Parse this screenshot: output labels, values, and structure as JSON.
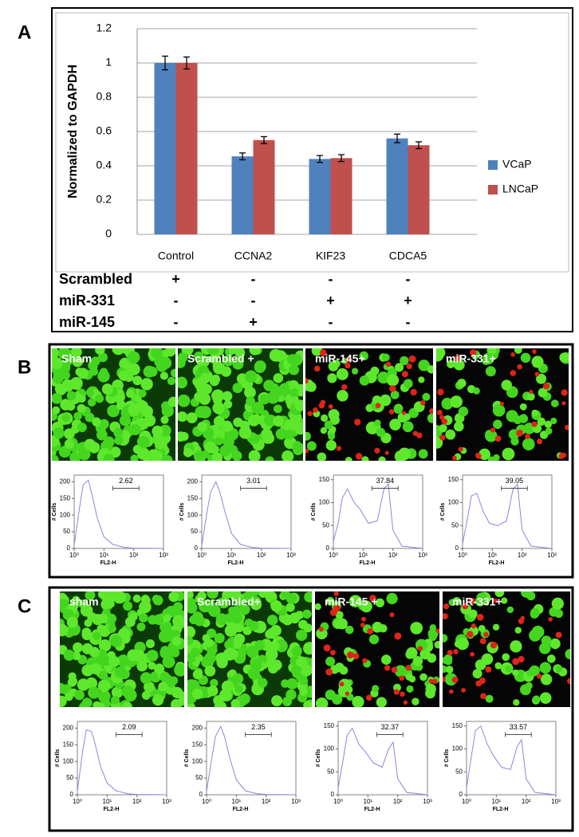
{
  "panels": [
    {
      "label": "A"
    },
    {
      "label": "B",
      "images": [
        "Sham",
        "Scrambled +",
        "miR-145+",
        "miR-331+"
      ]
    },
    {
      "label": "C",
      "images": [
        "sham",
        "Scrambled+",
        "miR-145 +",
        "miR-331+"
      ]
    }
  ],
  "treatment_table": {
    "rows": [
      {
        "label": "Scrambled",
        "cells": [
          "+",
          "-",
          "-",
          "-"
        ]
      },
      {
        "label": "miR-331",
        "cells": [
          "-",
          "-",
          "+",
          "+"
        ]
      },
      {
        "label": "miR-145",
        "cells": [
          "-",
          "+",
          "-",
          "-"
        ]
      }
    ]
  },
  "chart_data": [
    {
      "type": "bar",
      "y_label": "Normalized to GAPDH",
      "categories": [
        "Control",
        "CCNA2",
        "KIF23",
        "CDCA5"
      ],
      "series": [
        {
          "name": "VCaP",
          "color": "#4f81bd",
          "values": [
            1.0,
            0.455,
            0.44,
            0.56
          ],
          "errors": [
            0.04,
            0.02,
            0.02,
            0.025
          ]
        },
        {
          "name": "LNCaP",
          "color": "#c0504d",
          "values": [
            1.0,
            0.55,
            0.445,
            0.52
          ],
          "errors": [
            0.035,
            0.02,
            0.02,
            0.02
          ]
        }
      ],
      "ylim": [
        0,
        1.2
      ],
      "yticks": [
        0,
        0.2,
        0.4,
        0.6,
        0.8,
        1,
        1.2
      ],
      "grid": true,
      "legend": "right"
    },
    {
      "type": "histogram-line",
      "x_label": "FL2-H",
      "y_label": "# Cells",
      "color": "#8888dd",
      "xscale": "log",
      "x": [
        1,
        1.5,
        2,
        3,
        4,
        6,
        10,
        20,
        50,
        100,
        1000
      ],
      "values": [
        10,
        120,
        190,
        205,
        160,
        90,
        35,
        12,
        3,
        1,
        0
      ],
      "xlim": [
        1,
        1000
      ],
      "xticks": [
        {
          "value": 1,
          "label": "10⁰"
        },
        {
          "value": 10,
          "label": "10¹"
        },
        {
          "value": 100,
          "label": "10²"
        },
        {
          "value": 1000,
          "label": "10³"
        }
      ],
      "ylim": [
        0,
        220
      ],
      "yticks": [
        0,
        50,
        100,
        150,
        200
      ],
      "gate": [
        20,
        150
      ],
      "annotation": 2.62
    },
    {
      "type": "histogram-line",
      "x_label": "FL2-H",
      "y_label": "# Cells",
      "color": "#8888dd",
      "xscale": "log",
      "x": [
        1,
        1.5,
        2,
        3,
        4,
        6,
        10,
        20,
        50,
        100,
        1000
      ],
      "values": [
        10,
        110,
        170,
        200,
        170,
        110,
        45,
        12,
        3,
        1,
        0
      ],
      "xlim": [
        1,
        1000
      ],
      "xticks": [
        {
          "value": 1,
          "label": "10⁰"
        },
        {
          "value": 10,
          "label": "10¹"
        },
        {
          "value": 100,
          "label": "10²"
        },
        {
          "value": 1000,
          "label": "10³"
        }
      ],
      "ylim": [
        0,
        220
      ],
      "yticks": [
        0,
        50,
        100,
        150,
        200
      ],
      "gate": [
        20,
        150
      ],
      "annotation": 3.01
    },
    {
      "type": "histogram-line",
      "x_label": "FL2-H",
      "y_label": "# Cells",
      "color": "#8888dd",
      "xscale": "log",
      "x": [
        1,
        1.5,
        2,
        3,
        5,
        8,
        15,
        30,
        50,
        70,
        100,
        200,
        1000
      ],
      "values": [
        15,
        60,
        110,
        130,
        100,
        85,
        55,
        60,
        130,
        140,
        40,
        5,
        0
      ],
      "xlim": [
        1,
        1000
      ],
      "xticks": [
        {
          "value": 1,
          "label": "10⁰"
        },
        {
          "value": 10,
          "label": "10¹"
        },
        {
          "value": 100,
          "label": "10²"
        },
        {
          "value": 1000,
          "label": "10³"
        }
      ],
      "ylim": [
        0,
        160
      ],
      "yticks": [
        0,
        50,
        100,
        150
      ],
      "gate": [
        20,
        150
      ],
      "annotation": 37.84
    },
    {
      "type": "histogram-line",
      "x_label": "FL2-H",
      "y_label": "# Cells",
      "color": "#8888dd",
      "xscale": "log",
      "x": [
        1,
        1.5,
        2,
        3,
        5,
        8,
        15,
        30,
        50,
        70,
        100,
        200,
        1000
      ],
      "values": [
        10,
        70,
        115,
        120,
        80,
        55,
        50,
        60,
        130,
        140,
        40,
        5,
        0
      ],
      "xlim": [
        1,
        1000
      ],
      "xticks": [
        {
          "value": 1,
          "label": "10⁰"
        },
        {
          "value": 10,
          "label": "10¹"
        },
        {
          "value": 100,
          "label": "10²"
        },
        {
          "value": 1000,
          "label": "10³"
        }
      ],
      "ylim": [
        0,
        160
      ],
      "yticks": [
        0,
        50,
        100,
        150
      ],
      "gate": [
        20,
        150
      ],
      "annotation": 39.05
    },
    {
      "type": "histogram-line",
      "x_label": "FL2-H",
      "y_label": "# Cells",
      "color": "#8888dd",
      "xscale": "log",
      "x": [
        1,
        1.5,
        2,
        3,
        4,
        6,
        10,
        20,
        50,
        100,
        1000
      ],
      "values": [
        10,
        130,
        195,
        190,
        150,
        85,
        35,
        12,
        3,
        1,
        0
      ],
      "xlim": [
        1,
        1000
      ],
      "xticks": [
        {
          "value": 1,
          "label": "10⁰"
        },
        {
          "value": 10,
          "label": "10¹"
        },
        {
          "value": 100,
          "label": "10²"
        },
        {
          "value": 1000,
          "label": "10³"
        }
      ],
      "ylim": [
        0,
        220
      ],
      "yticks": [
        0,
        50,
        100,
        150,
        200
      ],
      "gate": [
        20,
        150
      ],
      "annotation": 2.09
    },
    {
      "type": "histogram-line",
      "x_label": "FL2-H",
      "y_label": "# Cells",
      "color": "#8888dd",
      "xscale": "log",
      "x": [
        1,
        1.5,
        2,
        3,
        4,
        6,
        10,
        20,
        50,
        100,
        1000
      ],
      "values": [
        10,
        110,
        175,
        205,
        175,
        110,
        45,
        12,
        3,
        1,
        0
      ],
      "xlim": [
        1,
        1000
      ],
      "xticks": [
        {
          "value": 1,
          "label": "10⁰"
        },
        {
          "value": 10,
          "label": "10¹"
        },
        {
          "value": 100,
          "label": "10²"
        },
        {
          "value": 1000,
          "label": "10³"
        }
      ],
      "ylim": [
        0,
        220
      ],
      "yticks": [
        0,
        50,
        100,
        150,
        200
      ],
      "gate": [
        20,
        150
      ],
      "annotation": 2.35
    },
    {
      "type": "histogram-line",
      "x_label": "FL2-H",
      "y_label": "# Cells",
      "color": "#8888dd",
      "xscale": "log",
      "x": [
        1,
        1.5,
        2,
        3,
        5,
        8,
        15,
        30,
        50,
        70,
        100,
        200,
        1000
      ],
      "values": [
        15,
        80,
        130,
        145,
        110,
        95,
        70,
        60,
        100,
        115,
        35,
        5,
        0
      ],
      "xlim": [
        1,
        1000
      ],
      "xticks": [
        {
          "value": 1,
          "label": "10⁰"
        },
        {
          "value": 10,
          "label": "10¹"
        },
        {
          "value": 100,
          "label": "10²"
        },
        {
          "value": 1000,
          "label": "10³"
        }
      ],
      "ylim": [
        0,
        160
      ],
      "yticks": [
        0,
        50,
        100,
        150
      ],
      "gate": [
        20,
        150
      ],
      "annotation": 32.37
    },
    {
      "type": "histogram-line",
      "x_label": "FL2-H",
      "y_label": "# Cells",
      "color": "#8888dd",
      "xscale": "log",
      "x": [
        1,
        1.5,
        2,
        3,
        5,
        8,
        15,
        30,
        50,
        70,
        100,
        200,
        1000
      ],
      "values": [
        15,
        90,
        140,
        150,
        110,
        85,
        60,
        55,
        105,
        120,
        35,
        5,
        0
      ],
      "xlim": [
        1,
        1000
      ],
      "xticks": [
        {
          "value": 1,
          "label": "10⁰"
        },
        {
          "value": 10,
          "label": "10¹"
        },
        {
          "value": 100,
          "label": "10²"
        },
        {
          "value": 1000,
          "label": "10³"
        }
      ],
      "ylim": [
        0,
        160
      ],
      "yticks": [
        0,
        50,
        100,
        150
      ],
      "gate": [
        20,
        150
      ],
      "annotation": 33.57
    }
  ]
}
